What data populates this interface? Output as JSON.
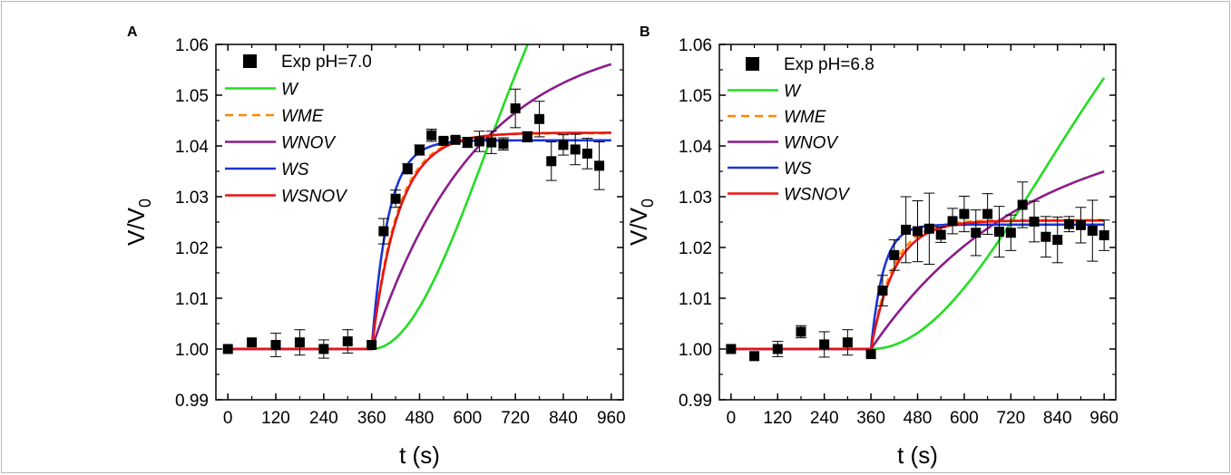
{
  "chart_data": [
    {
      "panel": "A",
      "type": "line",
      "xlabel": "t (s)",
      "ylabel_main": "V/V",
      "ylabel_sub": "0",
      "xlim": [
        -30,
        990
      ],
      "ylim": [
        0.99,
        1.06
      ],
      "xticks": [
        0,
        120,
        240,
        360,
        480,
        600,
        720,
        840,
        960
      ],
      "yticks": [
        0.99,
        1.0,
        1.01,
        1.02,
        1.03,
        1.04,
        1.05,
        1.06
      ],
      "legend_position": "top-left",
      "experimental": {
        "name": "Exp pH=7.0",
        "points": [
          {
            "x": 0,
            "y": 1.0,
            "err": 0
          },
          {
            "x": 60,
            "y": 1.0013,
            "err": 0
          },
          {
            "x": 120,
            "y": 1.0008,
            "err": 0.0023
          },
          {
            "x": 180,
            "y": 1.0013,
            "err": 0.0025
          },
          {
            "x": 240,
            "y": 1.0,
            "err": 0.0018
          },
          {
            "x": 300,
            "y": 1.0015,
            "err": 0.0023
          },
          {
            "x": 360,
            "y": 1.0008,
            "err": 0
          },
          {
            "x": 390,
            "y": 1.0232,
            "err": 0.0025
          },
          {
            "x": 420,
            "y": 1.0296,
            "err": 0.0017
          },
          {
            "x": 450,
            "y": 1.0355,
            "err": 0.001
          },
          {
            "x": 480,
            "y": 1.0392,
            "err": 0.001
          },
          {
            "x": 510,
            "y": 1.0421,
            "err": 0.0012
          },
          {
            "x": 540,
            "y": 1.041,
            "err": 0.0005
          },
          {
            "x": 570,
            "y": 1.0412,
            "err": 0.0005
          },
          {
            "x": 600,
            "y": 1.0407,
            "err": 0.001
          },
          {
            "x": 630,
            "y": 1.0409,
            "err": 0.002
          },
          {
            "x": 660,
            "y": 1.0407,
            "err": 0.0022
          },
          {
            "x": 690,
            "y": 1.0404,
            "err": 0.0012
          },
          {
            "x": 720,
            "y": 1.0474,
            "err": 0.0038
          },
          {
            "x": 750,
            "y": 1.0418,
            "err": 0.001
          },
          {
            "x": 780,
            "y": 1.0453,
            "err": 0.0035
          },
          {
            "x": 810,
            "y": 1.037,
            "err": 0.0038
          },
          {
            "x": 840,
            "y": 1.0402,
            "err": 0.002
          },
          {
            "x": 870,
            "y": 1.0393,
            "err": 0.003
          },
          {
            "x": 900,
            "y": 1.0385,
            "err": 0.003
          },
          {
            "x": 930,
            "y": 1.0361,
            "err": 0.0047
          }
        ]
      },
      "models": [
        {
          "name": "W",
          "color": "#22dd22",
          "dashed": false,
          "start": 360,
          "type": "sigmoid",
          "amp": 0.1,
          "rate": 6e-06
        },
        {
          "name": "WME",
          "color": "#ff8800",
          "dashed": true,
          "start": 360,
          "type": "exp",
          "amp": 0.0425,
          "k": 0.0155
        },
        {
          "name": "WNOV",
          "color": "#8a1d8a",
          "dashed": false,
          "start": 360,
          "type": "exp",
          "amp": 0.0625,
          "k": 0.0038
        },
        {
          "name": "WS",
          "color": "#1a34d8",
          "dashed": false,
          "start": 360,
          "type": "exp",
          "amp": 0.0411,
          "k": 0.024
        },
        {
          "name": "WSNOV",
          "color": "#ee1111",
          "dashed": false,
          "start": 360,
          "type": "exp",
          "amp": 0.0426,
          "k": 0.0148
        }
      ]
    },
    {
      "panel": "B",
      "type": "line",
      "xlabel": "t (s)",
      "ylabel_main": "V/V",
      "ylabel_sub": "0",
      "xlim": [
        -30,
        990
      ],
      "ylim": [
        0.99,
        1.06
      ],
      "xticks": [
        0,
        120,
        240,
        360,
        480,
        600,
        720,
        840,
        960
      ],
      "yticks": [
        0.99,
        1.0,
        1.01,
        1.02,
        1.03,
        1.04,
        1.05,
        1.06
      ],
      "legend_position": "top-left",
      "experimental": {
        "name": "Exp pH=6.8",
        "points": [
          {
            "x": 0,
            "y": 1.0,
            "err": 0
          },
          {
            "x": 60,
            "y": 0.9986,
            "err": 0
          },
          {
            "x": 120,
            "y": 1.0,
            "err": 0.0015
          },
          {
            "x": 180,
            "y": 1.0034,
            "err": 0.0012
          },
          {
            "x": 240,
            "y": 1.0009,
            "err": 0.0025
          },
          {
            "x": 300,
            "y": 1.0013,
            "err": 0.0025
          },
          {
            "x": 360,
            "y": 0.999,
            "err": 0
          },
          {
            "x": 390,
            "y": 1.0115,
            "err": 0.003
          },
          {
            "x": 420,
            "y": 1.0185,
            "err": 0.003
          },
          {
            "x": 450,
            "y": 1.0235,
            "err": 0.0065
          },
          {
            "x": 480,
            "y": 1.0232,
            "err": 0.006
          },
          {
            "x": 510,
            "y": 1.0237,
            "err": 0.007
          },
          {
            "x": 540,
            "y": 1.0225,
            "err": 0.0015
          },
          {
            "x": 570,
            "y": 1.0252,
            "err": 0.0025
          },
          {
            "x": 600,
            "y": 1.0266,
            "err": 0.0035
          },
          {
            "x": 630,
            "y": 1.0229,
            "err": 0.0045
          },
          {
            "x": 660,
            "y": 1.0266,
            "err": 0.004
          },
          {
            "x": 690,
            "y": 1.0231,
            "err": 0.005
          },
          {
            "x": 720,
            "y": 1.0229,
            "err": 0.0035
          },
          {
            "x": 750,
            "y": 1.0284,
            "err": 0.0045
          },
          {
            "x": 780,
            "y": 1.0251,
            "err": 0.004
          },
          {
            "x": 810,
            "y": 1.0221,
            "err": 0.004
          },
          {
            "x": 840,
            "y": 1.0215,
            "err": 0.0045
          },
          {
            "x": 870,
            "y": 1.0246,
            "err": 0.0015
          },
          {
            "x": 900,
            "y": 1.0244,
            "err": 0.0035
          },
          {
            "x": 930,
            "y": 1.0233,
            "err": 0.006
          },
          {
            "x": 960,
            "y": 1.0224,
            "err": 0.003
          }
        ]
      },
      "models": [
        {
          "name": "W",
          "color": "#22dd22",
          "dashed": false,
          "start": 360,
          "type": "sigmoid",
          "amp": 0.09,
          "rate": 2.5e-06
        },
        {
          "name": "WME",
          "color": "#ff8800",
          "dashed": true,
          "start": 360,
          "type": "exp",
          "amp": 0.0254,
          "k": 0.0175
        },
        {
          "name": "WNOV",
          "color": "#8a1d8a",
          "dashed": false,
          "start": 360,
          "type": "exp",
          "amp": 0.045,
          "k": 0.0025
        },
        {
          "name": "WS",
          "color": "#1a34d8",
          "dashed": false,
          "start": 360,
          "type": "exp",
          "amp": 0.0245,
          "k": 0.031
        },
        {
          "name": "WSNOV",
          "color": "#ee1111",
          "dashed": false,
          "start": 360,
          "type": "exp",
          "amp": 0.0253,
          "k": 0.016
        }
      ]
    }
  ]
}
